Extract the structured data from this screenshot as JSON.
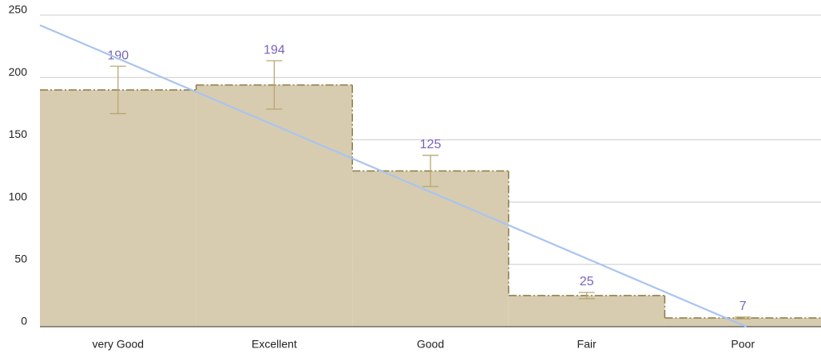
{
  "chart_data": {
    "type": "stepped-area",
    "categories": [
      "very Good",
      "Excellent",
      "Good",
      "Fair",
      "Poor"
    ],
    "values": [
      190,
      194,
      125,
      25,
      7
    ],
    "errors": [
      19,
      19.4,
      12.5,
      2.5,
      0.7
    ],
    "color": "#d7ccb0",
    "line_color": "#8c7a45",
    "error_color": "#b8a774",
    "label_color": "#7a63b8",
    "trendline": true,
    "trendline_color": "#a8c4f0",
    "ylim": [
      0,
      250
    ],
    "yticks": [
      0,
      50,
      100,
      150,
      200,
      250
    ],
    "grid": true
  }
}
